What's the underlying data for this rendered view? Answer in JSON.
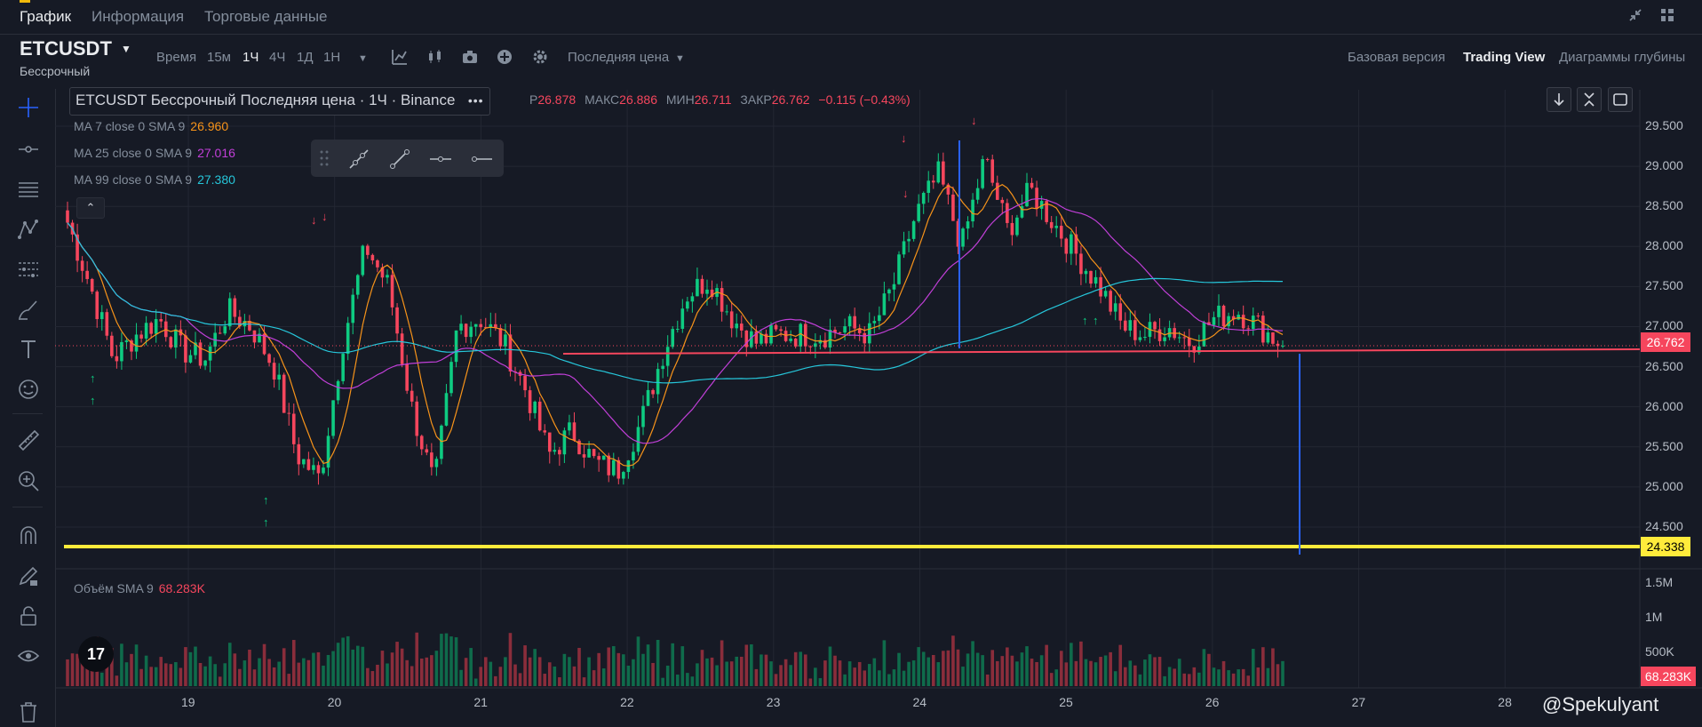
{
  "tabs": [
    {
      "label": "График",
      "active": true
    },
    {
      "label": "Информация",
      "active": false
    },
    {
      "label": "Торговые данные",
      "active": false
    }
  ],
  "symbol": {
    "name": "ETCUSDT",
    "contract": "Бессрочный"
  },
  "toolbar": {
    "time_label": "Время",
    "intervals": [
      "15м",
      "1Ч",
      "4Ч",
      "1Д",
      "1Н"
    ],
    "active_interval": "1Ч",
    "price_type": "Последняя цена",
    "views": [
      "Базовая версия",
      "Trading View",
      "Диаграммы глубины"
    ],
    "active_view": "Trading View"
  },
  "legend": {
    "title": "ETCUSDT Бессрочный Последняя цена · 1Ч · Binance",
    "more": "•••",
    "ohlc_text": "Р26.878 МАКС26.886 МИН26.711 ЗАКР26.762 −0.115 (−0.43%)",
    "o_label": "Р",
    "o": "26.878",
    "h_label": "МАКС",
    "h": "26.886",
    "l_label": "МИН",
    "l": "26.711",
    "c_label": "ЗАКР",
    "c": "26.762",
    "change": "−0.115 (−0.43%)"
  },
  "ma": [
    {
      "label": "MA 7 close 0 SMA 9",
      "value": "26.960",
      "color": "#f7931a"
    },
    {
      "label": "MA 25 close 0 SMA 9",
      "value": "27.016",
      "color": "#c13fd8"
    },
    {
      "label": "MA 99 close 0 SMA 9",
      "value": "27.380",
      "color": "#26c6da"
    }
  ],
  "volume": {
    "label": "Объём SMA 9",
    "value": "68.283K"
  },
  "price_axis": {
    "ticks": [
      "29.500",
      "29.000",
      "28.500",
      "28.000",
      "27.500",
      "27.000",
      "26.500",
      "26.000",
      "25.500",
      "25.000",
      "24.500"
    ],
    "last_price": "26.762",
    "hline_price": "24.338"
  },
  "volume_axis": {
    "ticks": [
      "1.5M",
      "1M",
      "500K"
    ],
    "last": "68.283K"
  },
  "time_axis": {
    "ticks": [
      "19",
      "20",
      "21",
      "22",
      "23",
      "24",
      "25",
      "26",
      "27",
      "28"
    ]
  },
  "watermark": "@Spekulyant",
  "tv_logo": "17",
  "colors": {
    "up": "#0ecb81",
    "down": "#f6465d",
    "accent": "#f0b90b",
    "hline": "#ffeb3b",
    "vline": "#2962ff"
  },
  "chart_data": {
    "type": "candlestick",
    "title": "ETCUSDT Бессрочный Последняя цена · 1Ч · Binance",
    "y_range": [
      24.2,
      29.7
    ],
    "x_ticks": [
      "19",
      "20",
      "21",
      "22",
      "23",
      "24",
      "25",
      "26",
      "27",
      "28"
    ],
    "series_approx_closes": [
      28.3,
      27.5,
      26.6,
      26.9,
      27.1,
      26.7,
      26.6,
      27.2,
      27.0,
      26.5,
      25.4,
      25.1,
      26.8,
      28.0,
      27.5,
      26.0,
      25.0,
      27.0,
      27.1,
      26.8,
      26.2,
      25.4,
      25.7,
      25.3,
      25.2,
      25.8,
      26.7,
      27.4,
      27.6,
      27.1,
      26.8,
      26.9,
      26.9,
      26.9,
      27.0,
      26.9,
      27.5,
      28.4,
      28.9,
      28.0,
      29.1,
      28.2,
      28.7,
      28.3,
      27.9,
      27.5,
      27.0,
      26.9,
      27.0,
      26.8,
      27.1,
      27.2,
      27.0,
      26.76
    ],
    "horizontal_lines": [
      26.66,
      24.338
    ],
    "volume": {
      "ticks": [
        "1.5M",
        "1M",
        "500K"
      ],
      "last": "68.283K"
    }
  }
}
